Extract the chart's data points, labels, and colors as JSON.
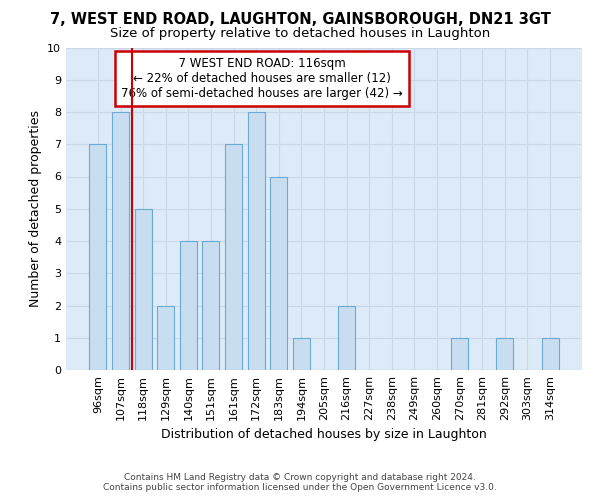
{
  "title": "7, WEST END ROAD, LAUGHTON, GAINSBOROUGH, DN21 3GT",
  "subtitle": "Size of property relative to detached houses in Laughton",
  "xlabel": "Distribution of detached houses by size in Laughton",
  "ylabel": "Number of detached properties",
  "categories": [
    "96sqm",
    "107sqm",
    "118sqm",
    "129sqm",
    "140sqm",
    "151sqm",
    "161sqm",
    "172sqm",
    "183sqm",
    "194sqm",
    "205sqm",
    "216sqm",
    "227sqm",
    "238sqm",
    "249sqm",
    "260sqm",
    "270sqm",
    "281sqm",
    "292sqm",
    "303sqm",
    "314sqm"
  ],
  "values": [
    7,
    8,
    5,
    2,
    4,
    4,
    7,
    8,
    6,
    1,
    0,
    2,
    0,
    0,
    0,
    0,
    1,
    0,
    1,
    0,
    1
  ],
  "bar_color": "#c8ddf0",
  "bar_edge_color": "#6aaad4",
  "bar_linewidth": 0.8,
  "property_label": "7 WEST END ROAD: 116sqm",
  "annotation_line1": "← 22% of detached houses are smaller (12)",
  "annotation_line2": "76% of semi-detached houses are larger (42) →",
  "annotation_box_color": "#ffffff",
  "annotation_box_edge": "#cc0000",
  "vline_color": "#cc0000",
  "vline_linewidth": 1.5,
  "vline_x_index": 2,
  "ylim": [
    0,
    10
  ],
  "yticks": [
    0,
    1,
    2,
    3,
    4,
    5,
    6,
    7,
    8,
    9,
    10
  ],
  "grid_color": "#c8d8e8",
  "bg_color": "#ddeaf7",
  "title_fontsize": 10.5,
  "subtitle_fontsize": 9.5,
  "tick_fontsize": 8,
  "ylabel_fontsize": 9,
  "xlabel_fontsize": 9,
  "footer1": "Contains HM Land Registry data © Crown copyright and database right 2024.",
  "footer2": "Contains public sector information licensed under the Open Government Licence v3.0."
}
